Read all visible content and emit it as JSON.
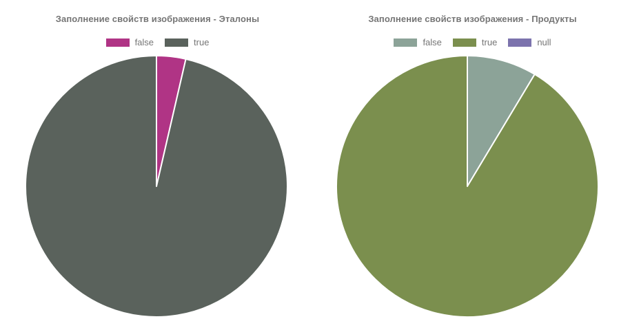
{
  "page": {
    "background_color": "#ffffff",
    "text_color": "#757575"
  },
  "chart_data": [
    {
      "type": "pie",
      "title": "Заполнение свойств изображения - Эталоны",
      "legend_position": "top-center",
      "start_angle_deg": -90,
      "direction": "clockwise",
      "slice_border_color": "#ffffff",
      "slices": [
        {
          "label": "false",
          "value_pct": 3.6,
          "color": "#B03485"
        },
        {
          "label": "true",
          "value_pct": 96.4,
          "color": "#5A625C"
        }
      ]
    },
    {
      "type": "pie",
      "title": "Заполнение свойств изображения - Продукты",
      "legend_position": "top-center",
      "start_angle_deg": -90,
      "direction": "clockwise",
      "slice_border_color": "#ffffff",
      "slices": [
        {
          "label": "false",
          "value_pct": 8.6,
          "color": "#8CA398"
        },
        {
          "label": "true",
          "value_pct": 91.4,
          "color": "#7B8F4E"
        },
        {
          "label": "null",
          "value_pct": 0,
          "color": "#7C73AD"
        }
      ]
    }
  ]
}
